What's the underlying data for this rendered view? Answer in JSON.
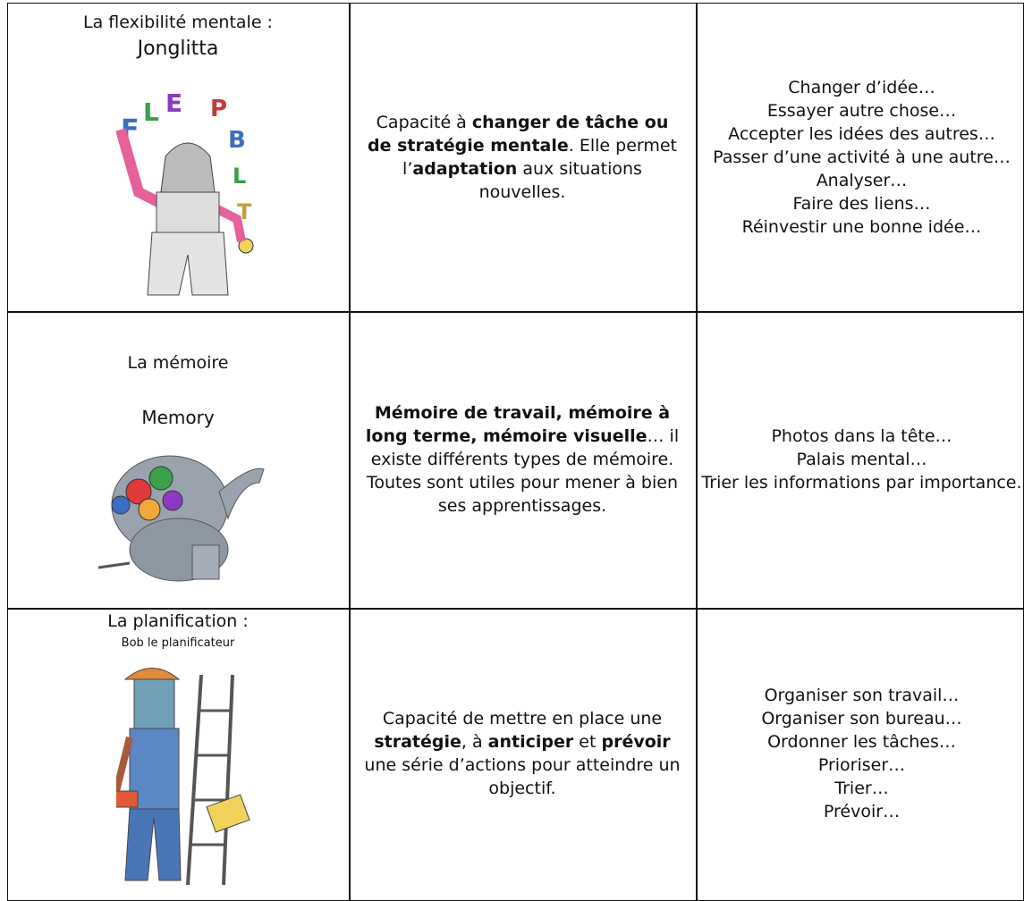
{
  "table": {
    "rows": [
      {
        "title": "La flexibilité mentale :",
        "character": "Jonglitta",
        "description": [
          {
            "text": "Capacité à ",
            "bold": false
          },
          {
            "text": "changer de tâche ou de stratégie mentale",
            "bold": true
          },
          {
            "text": ". Elle permet l’",
            "bold": false
          },
          {
            "text": "adaptation",
            "bold": true
          },
          {
            "text": " aux situations nouvelles.",
            "bold": false
          }
        ],
        "examples": [
          "Changer d’idée…",
          "Essayer autre chose…",
          "Accepter les idées des autres…",
          "Passer d’une activité à une autre…",
          "Analyser…",
          "Faire des liens…",
          "Réinvestir une bonne idée…"
        ]
      },
      {
        "title": "La mémoire",
        "character": "Memory",
        "description": [
          {
            "text": "Mémoire de travail, mémoire à long terme, mémoire visuelle",
            "bold": true
          },
          {
            "text": "… il existe différents types de mémoire. Toutes sont utiles pour mener à bien ses apprentissages.",
            "bold": false
          }
        ],
        "examples": [
          "Photos dans la tête…",
          "Palais mental…",
          "Trier les informations par importance."
        ]
      },
      {
        "title": "La planification :",
        "character": "Bob le planificateur",
        "description": [
          {
            "text": "Capacité de mettre en place une ",
            "bold": false
          },
          {
            "text": "stratégie",
            "bold": true
          },
          {
            "text": ", à ",
            "bold": false
          },
          {
            "text": "anticiper",
            "bold": true
          },
          {
            "text": " et ",
            "bold": false
          },
          {
            "text": "prévoir",
            "bold": true
          },
          {
            "text": " une série d’actions pour atteindre un objectif.",
            "bold": false
          }
        ],
        "examples": [
          "Organiser son travail…",
          "Organiser son bureau…",
          "Ordonner les tâches…",
          "Prioriser…",
          "Trier…",
          "Prévoir…"
        ]
      }
    ]
  }
}
